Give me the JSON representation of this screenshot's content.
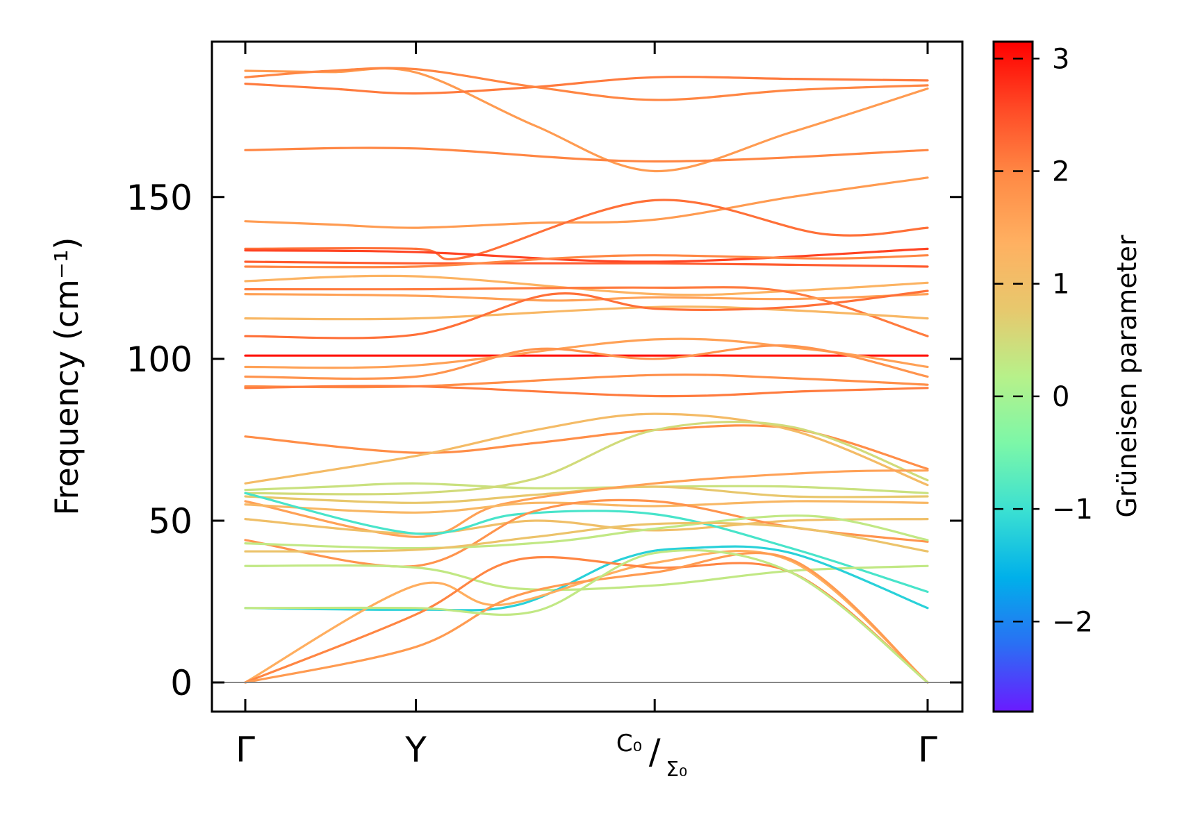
{
  "chart_data": {
    "type": "line",
    "title": "",
    "xlabel": "",
    "ylabel": "Frequency (cm⁻¹)",
    "ylim": [
      -9,
      198
    ],
    "grid": false,
    "zero_line": true,
    "q_path": {
      "positions": [
        0,
        1,
        2.4,
        4
      ],
      "labels": [
        "Γ",
        "Y",
        "C₀/Σ₀",
        "Γ"
      ],
      "label_mid_main": "C₀",
      "label_mid_sub": "Σ₀"
    },
    "y_ticks": [
      0,
      50,
      100,
      150
    ],
    "colorbar": {
      "title": "Grüneisen parameter",
      "range": [
        -2.8,
        3.15
      ],
      "ticks": [
        -2,
        -1,
        0,
        1,
        2,
        3
      ],
      "tick_labels": [
        "−2",
        "−1",
        "0",
        "1",
        "2",
        "3"
      ],
      "colormap": "rainbow",
      "stops": [
        "#6a1bff",
        "#2a6ff4",
        "#00b0ea",
        "#3be0d2",
        "#7cf7a8",
        "#b7f18a",
        "#e7c86d",
        "#ffb061",
        "#ff8a45",
        "#ff4a26",
        "#ff0000"
      ]
    },
    "series": [
      {
        "name": "b01",
        "x": [
          0,
          0.5,
          1,
          1.7,
          2.4,
          3.2,
          4
        ],
        "y": [
          189,
          188.6,
          188.5,
          172,
          158,
          170,
          183.5
        ],
        "gamma": 1.7
      },
      {
        "name": "b02",
        "x": [
          0,
          0.5,
          1,
          1.7,
          2.4,
          3.2,
          4
        ],
        "y": [
          185,
          183.5,
          182,
          184,
          187,
          186.5,
          186
        ],
        "gamma": 2.1
      },
      {
        "name": "b03",
        "x": [
          0,
          0.5,
          1,
          1.7,
          2.4,
          3.2,
          4
        ],
        "y": [
          187,
          189,
          189.5,
          184,
          180,
          183,
          184.5
        ],
        "gamma": 2.0
      },
      {
        "name": "b04",
        "x": [
          0,
          1,
          2.4,
          4
        ],
        "y": [
          164.5,
          165,
          161,
          164.5
        ],
        "gamma": 2.0
      },
      {
        "name": "b05",
        "x": [
          0,
          0.5,
          1,
          1.7,
          2.4,
          3.2,
          4
        ],
        "y": [
          142.5,
          141.5,
          140.5,
          142,
          143,
          150,
          156
        ],
        "gamma": 1.7
      },
      {
        "name": "b06",
        "x": [
          0,
          1,
          1.3,
          2.4,
          3.4,
          4
        ],
        "y": [
          134,
          134,
          131.5,
          149,
          138.5,
          140.5
        ],
        "gamma": 2.2
      },
      {
        "name": "b07",
        "x": [
          0,
          1,
          2.4,
          4
        ],
        "y": [
          133.5,
          133,
          130,
          134
        ],
        "gamma": 2.6
      },
      {
        "name": "b08",
        "x": [
          0,
          1,
          2.4,
          4
        ],
        "y": [
          130,
          129.5,
          129.5,
          128.5
        ],
        "gamma": 2.4
      },
      {
        "name": "b09",
        "x": [
          0,
          1,
          1.8,
          2.4,
          3.4,
          4
        ],
        "y": [
          128.5,
          128.5,
          131,
          132,
          131,
          132
        ],
        "gamma": 2.0
      },
      {
        "name": "b10",
        "x": [
          0,
          1,
          2.4,
          3.2,
          4
        ],
        "y": [
          124,
          125.5,
          120,
          121,
          123.5
        ],
        "gamma": 1.3
      },
      {
        "name": "b11",
        "x": [
          0,
          1,
          2.4,
          3.2,
          4
        ],
        "y": [
          121.5,
          121.5,
          122,
          120.5,
          107
        ],
        "gamma": 2.1
      },
      {
        "name": "b12",
        "x": [
          0,
          1,
          1.8,
          2.4,
          3.2,
          4
        ],
        "y": [
          120,
          119.5,
          118,
          119,
          118.5,
          120
        ],
        "gamma": 1.6
      },
      {
        "name": "b13",
        "x": [
          0,
          1,
          2.4,
          3.2,
          4
        ],
        "y": [
          112.5,
          112.5,
          116,
          115,
          112.5
        ],
        "gamma": 1.2
      },
      {
        "name": "b14",
        "x": [
          0,
          1,
          1.8,
          2.4,
          3.2,
          4
        ],
        "y": [
          107,
          107.5,
          120,
          115.5,
          116,
          121
        ],
        "gamma": 2.2
      },
      {
        "name": "b15",
        "x": [
          0,
          1,
          1.8,
          2.4,
          3.4,
          4
        ],
        "y": [
          101,
          101,
          101,
          101,
          101,
          101
        ],
        "gamma": 3.0
      },
      {
        "name": "b16",
        "x": [
          0,
          1,
          2.4,
          3.3,
          4
        ],
        "y": [
          97.5,
          98,
          106,
          103,
          97.5
        ],
        "gamma": 1.6
      },
      {
        "name": "b17",
        "x": [
          0,
          1,
          1.7,
          2.4,
          3.2,
          4
        ],
        "y": [
          94.5,
          94.5,
          103,
          100,
          104,
          94.5
        ],
        "gamma": 1.8
      },
      {
        "name": "b18",
        "x": [
          0,
          1,
          2.4,
          3.2,
          4
        ],
        "y": [
          91.5,
          91.5,
          95,
          94,
          92
        ],
        "gamma": 1.9
      },
      {
        "name": "b19",
        "x": [
          0,
          1,
          2.4,
          3.3,
          4
        ],
        "y": [
          91,
          91.5,
          88.5,
          90,
          91
        ],
        "gamma": 2.1
      },
      {
        "name": "b20",
        "x": [
          0,
          1,
          1.7,
          2.4,
          3.2,
          4
        ],
        "y": [
          76,
          71,
          74,
          78,
          78.5,
          66
        ],
        "gamma": 1.9
      },
      {
        "name": "b21",
        "x": [
          0,
          1,
          1.7,
          2.4,
          3.2,
          4
        ],
        "y": [
          61.5,
          70,
          78,
          83,
          78,
          61
        ],
        "gamma": 1.1
      },
      {
        "name": "b22",
        "x": [
          0,
          0.5,
          1,
          1.7,
          2.4,
          3.2,
          4
        ],
        "y": [
          59.5,
          60.5,
          61.5,
          60,
          60.5,
          60.5,
          58.5
        ],
        "gamma": 0.4
      },
      {
        "name": "b23",
        "x": [
          0,
          1,
          1.7,
          2.4,
          3.2,
          4
        ],
        "y": [
          58.5,
          58.5,
          63,
          78,
          79,
          62.5
        ],
        "gamma": 0.5
      },
      {
        "name": "b24",
        "x": [
          0,
          1,
          1.7,
          2.4,
          3.2,
          4
        ],
        "y": [
          57.5,
          55.5,
          58,
          60.5,
          57.5,
          57.5
        ],
        "gamma": 0.8
      },
      {
        "name": "b25",
        "x": [
          0,
          1,
          1.5,
          2.4,
          3.4,
          4
        ],
        "y": [
          56,
          45,
          55,
          61.5,
          65,
          65.5
        ],
        "gamma": 1.6
      },
      {
        "name": "b26",
        "x": [
          0,
          1,
          1.7,
          2.4,
          3.2,
          4
        ],
        "y": [
          55,
          52.5,
          55.5,
          54.5,
          56,
          55.5
        ],
        "gamma": 1.2
      },
      {
        "name": "b27",
        "x": [
          0,
          1,
          1.7,
          2.4,
          3.2,
          4
        ],
        "y": [
          50.5,
          46,
          50,
          47,
          50,
          50.5
        ],
        "gamma": 1.0
      },
      {
        "name": "b28",
        "x": [
          0,
          1,
          1.6,
          2.4,
          3.2,
          4
        ],
        "y": [
          58.5,
          46,
          52,
          52,
          41.5,
          28
        ],
        "gamma": -0.9
      },
      {
        "name": "b29",
        "x": [
          0,
          1,
          1.7,
          2.4,
          3.2,
          4
        ],
        "y": [
          44,
          36,
          53,
          56,
          48,
          43.5
        ],
        "gamma": 1.8
      },
      {
        "name": "b30",
        "x": [
          0,
          1,
          1.8,
          2.4,
          3.3,
          4
        ],
        "y": [
          43,
          41.5,
          43.5,
          47.5,
          51.5,
          44
        ],
        "gamma": 0.3
      },
      {
        "name": "b31",
        "x": [
          0,
          1,
          1.7,
          2.4,
          3.2,
          4
        ],
        "y": [
          40.5,
          41,
          45,
          49,
          48,
          40.5
        ],
        "gamma": 0.9
      },
      {
        "name": "b32",
        "x": [
          0,
          1,
          1.6,
          2.4,
          3.2,
          4
        ],
        "y": [
          36,
          35.5,
          29,
          30,
          34.5,
          36
        ],
        "gamma": 0.3
      },
      {
        "name": "b33",
        "x": [
          0,
          1,
          1.6,
          2.2,
          2.6,
          3.2,
          4
        ],
        "y": [
          23,
          22.5,
          24,
          38,
          41.5,
          40,
          23
        ],
        "gamma": -1.2
      },
      {
        "name": "b34",
        "x": [
          0,
          1,
          1.5,
          2.4,
          3.2,
          4
        ],
        "y": [
          0,
          30,
          24,
          37,
          37.5,
          0
        ],
        "gamma": 1.4
      },
      {
        "name": "b35",
        "x": [
          0,
          1,
          1.6,
          2.4,
          3.2,
          4
        ],
        "y": [
          0,
          21,
          38,
          35.5,
          34,
          0
        ],
        "gamma": 2.0
      },
      {
        "name": "b36",
        "x": [
          0,
          1,
          1.6,
          2.4,
          3.2,
          4
        ],
        "y": [
          0,
          11,
          27,
          34,
          38,
          0
        ],
        "gamma": 1.7
      },
      {
        "name": "b37",
        "x": [
          0,
          1,
          1.7,
          2.4,
          3.2,
          4
        ],
        "y": [
          23,
          23,
          22,
          40,
          34,
          0
        ],
        "gamma": 0.3
      }
    ]
  }
}
